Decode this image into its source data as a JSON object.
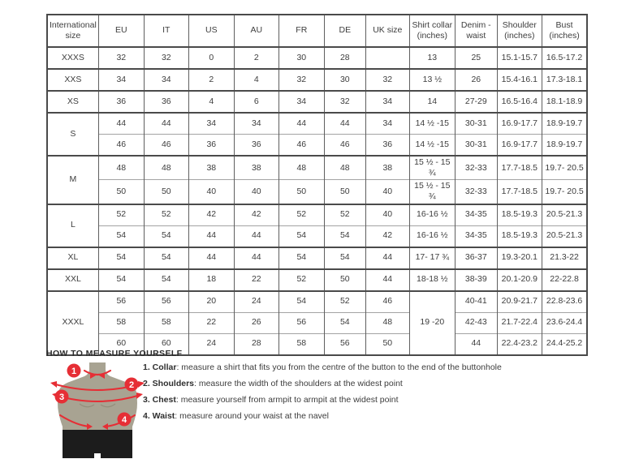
{
  "colors": {
    "accent_red": "#e62e35",
    "mannequin_body": "#a8a392",
    "mannequin_shade": "#938e7b",
    "pants_black": "#1c1c1c",
    "border_dark": "#4a4a4a",
    "border_light": "#a3a3a3",
    "text": "#3d3d3d"
  },
  "table": {
    "headers": [
      "International size",
      "EU",
      "IT",
      "US",
      "AU",
      "FR",
      "DE",
      "UK size",
      "Shirt collar (inches)",
      "Denim - waist",
      "Shoulder (inches)",
      "Bust (inches)"
    ],
    "rows": [
      {
        "group": true,
        "cells": [
          {
            "t": "XXXS"
          },
          {
            "t": "32"
          },
          {
            "t": "32"
          },
          {
            "t": "0"
          },
          {
            "t": "2"
          },
          {
            "t": "30"
          },
          {
            "t": "28"
          },
          {
            "t": ""
          },
          {
            "t": "13"
          },
          {
            "t": "25"
          },
          {
            "t": "15.1-15.7"
          },
          {
            "t": "16.5-17.2"
          }
        ]
      },
      {
        "group": true,
        "cells": [
          {
            "t": "XXS"
          },
          {
            "t": "34"
          },
          {
            "t": "34"
          },
          {
            "t": "2"
          },
          {
            "t": "4"
          },
          {
            "t": "32"
          },
          {
            "t": "30"
          },
          {
            "t": "32"
          },
          {
            "t": "13 ½"
          },
          {
            "t": "26"
          },
          {
            "t": "15.4-16.1"
          },
          {
            "t": "17.3-18.1"
          }
        ]
      },
      {
        "group": true,
        "cells": [
          {
            "t": "XS"
          },
          {
            "t": "36"
          },
          {
            "t": "36"
          },
          {
            "t": "4"
          },
          {
            "t": "6"
          },
          {
            "t": "34"
          },
          {
            "t": "32"
          },
          {
            "t": "34"
          },
          {
            "t": "14"
          },
          {
            "t": "27-29"
          },
          {
            "t": "16.5-16.4"
          },
          {
            "t": "18.1-18.9"
          }
        ]
      },
      {
        "group": true,
        "cells": [
          {
            "t": "S",
            "rs": 2
          },
          {
            "t": "44"
          },
          {
            "t": "44"
          },
          {
            "t": "34"
          },
          {
            "t": "34"
          },
          {
            "t": "44"
          },
          {
            "t": "44"
          },
          {
            "t": "34"
          },
          {
            "t": "14 ½ -15"
          },
          {
            "t": "30-31"
          },
          {
            "t": "16.9-17.7"
          },
          {
            "t": "18.9-19.7"
          }
        ]
      },
      {
        "group": false,
        "cells": [
          {
            "t": "46"
          },
          {
            "t": "46"
          },
          {
            "t": "36"
          },
          {
            "t": "36"
          },
          {
            "t": "46"
          },
          {
            "t": "46"
          },
          {
            "t": "36"
          },
          {
            "t": "14 ½ -15"
          },
          {
            "t": "30-31"
          },
          {
            "t": "16.9-17.7"
          },
          {
            "t": "18.9-19.7"
          }
        ]
      },
      {
        "group": true,
        "cells": [
          {
            "t": "M",
            "rs": 2
          },
          {
            "t": "48"
          },
          {
            "t": "48"
          },
          {
            "t": "38"
          },
          {
            "t": "38"
          },
          {
            "t": "48"
          },
          {
            "t": "48"
          },
          {
            "t": "38"
          },
          {
            "t": "15 ½ - 15 ¾"
          },
          {
            "t": "32-33"
          },
          {
            "t": "17.7-18.5"
          },
          {
            "t": "19.7- 20.5"
          }
        ]
      },
      {
        "group": false,
        "cells": [
          {
            "t": "50"
          },
          {
            "t": "50"
          },
          {
            "t": "40"
          },
          {
            "t": "40"
          },
          {
            "t": "50"
          },
          {
            "t": "50"
          },
          {
            "t": "40"
          },
          {
            "t": "15 ½ - 15 ¾"
          },
          {
            "t": "32-33"
          },
          {
            "t": "17.7-18.5"
          },
          {
            "t": "19.7- 20.5"
          }
        ]
      },
      {
        "group": true,
        "cells": [
          {
            "t": "L",
            "rs": 2
          },
          {
            "t": "52"
          },
          {
            "t": "52"
          },
          {
            "t": "42"
          },
          {
            "t": "42"
          },
          {
            "t": "52"
          },
          {
            "t": "52"
          },
          {
            "t": "40"
          },
          {
            "t": "16-16 ½"
          },
          {
            "t": "34-35"
          },
          {
            "t": "18.5-19.3"
          },
          {
            "t": "20.5-21.3"
          }
        ]
      },
      {
        "group": false,
        "cells": [
          {
            "t": "54"
          },
          {
            "t": "54"
          },
          {
            "t": "44"
          },
          {
            "t": "44"
          },
          {
            "t": "54"
          },
          {
            "t": "54"
          },
          {
            "t": "42"
          },
          {
            "t": "16-16 ½"
          },
          {
            "t": "34-35"
          },
          {
            "t": "18.5-19.3"
          },
          {
            "t": "20.5-21.3"
          }
        ]
      },
      {
        "group": true,
        "cells": [
          {
            "t": "XL"
          },
          {
            "t": "54"
          },
          {
            "t": "54"
          },
          {
            "t": "44"
          },
          {
            "t": "44"
          },
          {
            "t": "54"
          },
          {
            "t": "54"
          },
          {
            "t": "44"
          },
          {
            "t": "17- 17 ¾"
          },
          {
            "t": "36-37"
          },
          {
            "t": "19.3-20.1"
          },
          {
            "t": "21.3-22"
          }
        ]
      },
      {
        "group": true,
        "cells": [
          {
            "t": "XXL"
          },
          {
            "t": "54"
          },
          {
            "t": "54"
          },
          {
            "t": "18"
          },
          {
            "t": "22"
          },
          {
            "t": "52"
          },
          {
            "t": "50"
          },
          {
            "t": "44"
          },
          {
            "t": "18-18 ½"
          },
          {
            "t": "38-39"
          },
          {
            "t": "20.1-20.9"
          },
          {
            "t": "22-22.8"
          }
        ]
      },
      {
        "group": true,
        "cells": [
          {
            "t": "XXXL",
            "rs": 3
          },
          {
            "t": "56"
          },
          {
            "t": "56"
          },
          {
            "t": "20"
          },
          {
            "t": "24"
          },
          {
            "t": "54"
          },
          {
            "t": "52"
          },
          {
            "t": "46"
          },
          {
            "t": "19 -20",
            "rs": 3
          },
          {
            "t": "40-41"
          },
          {
            "t": "20.9-21.7"
          },
          {
            "t": "22.8-23.6"
          }
        ]
      },
      {
        "group": false,
        "cells": [
          {
            "t": "58"
          },
          {
            "t": "58"
          },
          {
            "t": "22"
          },
          {
            "t": "26"
          },
          {
            "t": "56"
          },
          {
            "t": "54"
          },
          {
            "t": "48"
          },
          {
            "t": "42-43"
          },
          {
            "t": "21.7-22.4"
          },
          {
            "t": "23.6-24.4"
          }
        ]
      },
      {
        "group": false,
        "cells": [
          {
            "t": "60"
          },
          {
            "t": "60"
          },
          {
            "t": "24"
          },
          {
            "t": "28"
          },
          {
            "t": "58"
          },
          {
            "t": "56"
          },
          {
            "t": "50"
          },
          {
            "t": "44"
          },
          {
            "t": "22.4-23.2"
          },
          {
            "t": "24.4-25.2"
          }
        ]
      }
    ]
  },
  "measure": {
    "title": "HOW TO MEASURE YOURSELF",
    "steps": [
      {
        "num": "1.",
        "label": "Collar",
        "text": "measure a shirt that fits you from the centre of the button to the end of the buttonhole"
      },
      {
        "num": "2.",
        "label": "Shoulders",
        "text": "measure the width of the shoulders at the widest point"
      },
      {
        "num": "3.",
        "label": "Chest",
        "text": "measure yourself from armpit to armpit at the widest point"
      },
      {
        "num": "4.",
        "label": "Waist",
        "text": "measure around your waist at the navel"
      }
    ]
  },
  "figure": {
    "markers": [
      "1",
      "2",
      "3",
      "4"
    ]
  }
}
